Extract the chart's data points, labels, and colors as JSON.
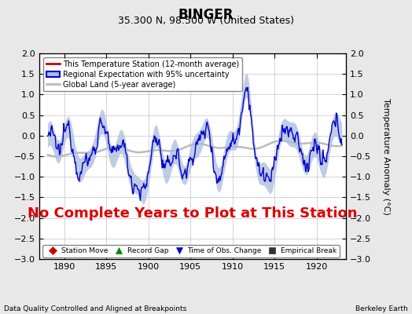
{
  "title": "BINGER",
  "subtitle": "35.300 N, 98.500 W (United States)",
  "xlabel_bottom": "Data Quality Controlled and Aligned at Breakpoints",
  "xlabel_right": "Berkeley Earth",
  "ylabel_right": "Temperature Anomaly (°C)",
  "xlim": [
    1887.0,
    1923.5
  ],
  "ylim": [
    -3.0,
    2.0
  ],
  "yticks_left": [
    -3,
    -2.5,
    -2,
    -1.5,
    -1,
    -0.5,
    0,
    0.5,
    1,
    1.5,
    2
  ],
  "yticks_right": [
    -3,
    -2.5,
    -2,
    -1.5,
    -1,
    -0.5,
    0,
    0.5,
    1,
    1.5,
    2
  ],
  "xticks": [
    1890,
    1895,
    1900,
    1905,
    1910,
    1915,
    1920
  ],
  "background_color": "#e8e8e8",
  "plot_bg_color": "#ffffff",
  "annotation_text": "No Complete Years to Plot at This Station",
  "annotation_color": "#dd0000",
  "annotation_fontsize": 13,
  "grid_color": "#cccccc",
  "title_fontsize": 12,
  "subtitle_fontsize": 9,
  "tick_fontsize": 8,
  "regional_line_color": "#0000cc",
  "regional_band_color": "#aabbdd",
  "global_land_color": "#bbbbbb",
  "legend_entries": [
    {
      "label": "This Temperature Station (12-month average)",
      "color": "#cc0000",
      "lw": 2
    },
    {
      "label": "Regional Expectation with 95% uncertainty",
      "color": "#0000cc",
      "lw": 2
    },
    {
      "label": "Global Land (5-year average)",
      "color": "#bbbbbb",
      "lw": 2
    }
  ],
  "bottom_legend": [
    {
      "label": "Station Move",
      "marker": "D",
      "color": "#cc0000"
    },
    {
      "label": "Record Gap",
      "marker": "^",
      "color": "#008800"
    },
    {
      "label": "Time of Obs. Change",
      "marker": "v",
      "color": "#0000cc"
    },
    {
      "label": "Empirical Break",
      "marker": "s",
      "color": "#333333"
    }
  ]
}
